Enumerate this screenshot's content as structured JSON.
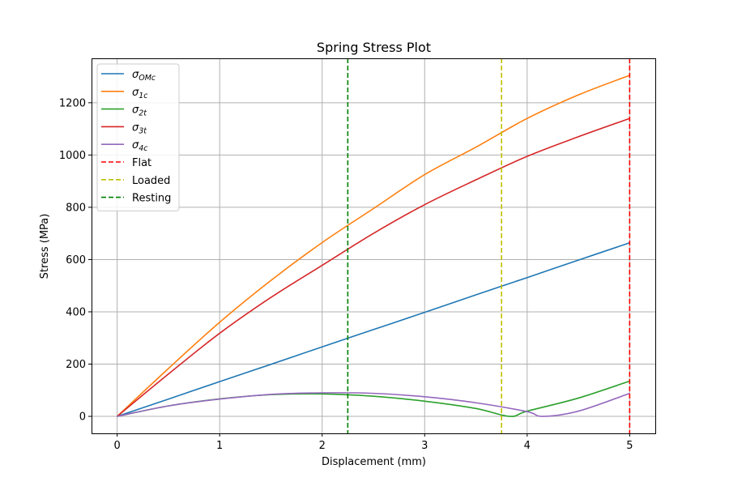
{
  "chart_data": {
    "type": "line",
    "title": "Spring Stress Plot",
    "xlabel": "Displacement (mm)",
    "ylabel": "Stress (MPa)",
    "xlim": [
      -0.25,
      5.25
    ],
    "ylim": [
      -65,
      1370
    ],
    "xticks": [
      0,
      1,
      2,
      3,
      4,
      5
    ],
    "yticks": [
      0,
      200,
      400,
      600,
      800,
      1000,
      1200
    ],
    "grid": true,
    "legend_position": "top-left",
    "series": [
      {
        "name": "σOMc",
        "label_main": "σ",
        "label_sub": "OMc",
        "color": "#1f77b4",
        "x": [
          0,
          0.5,
          1,
          1.5,
          2,
          2.5,
          3,
          3.5,
          4,
          4.5,
          5
        ],
        "y": [
          0,
          66,
          133,
          199,
          266,
          332,
          398,
          465,
          531,
          598,
          664
        ]
      },
      {
        "name": "σ1c",
        "label_main": "σ",
        "label_sub": "1c",
        "color": "#ff7f0e",
        "x": [
          0,
          0.5,
          1,
          1.5,
          2,
          2.5,
          3,
          3.5,
          4,
          4.5,
          5
        ],
        "y": [
          0,
          183,
          360,
          520,
          665,
          795,
          925,
          1030,
          1140,
          1230,
          1305
        ]
      },
      {
        "name": "σ2t",
        "label_main": "σ",
        "label_sub": "2t",
        "color": "#2ca02c",
        "x": [
          0,
          0.5,
          1,
          1.5,
          2,
          2.5,
          3,
          3.5,
          3.83,
          4,
          4.5,
          5
        ],
        "y": [
          0,
          40,
          67,
          83,
          86,
          77,
          58,
          30,
          0,
          20,
          70,
          135
        ]
      },
      {
        "name": "σ3t",
        "label_main": "σ",
        "label_sub": "3t",
        "color": "#d62728",
        "x": [
          0,
          0.5,
          1,
          1.5,
          2,
          2.5,
          3,
          3.5,
          4,
          4.5,
          5
        ],
        "y": [
          0,
          162,
          318,
          455,
          578,
          700,
          810,
          905,
          995,
          1070,
          1140
        ]
      },
      {
        "name": "σ4c",
        "label_main": "σ",
        "label_sub": "4c",
        "color": "#9467bd",
        "x": [
          0,
          0.5,
          1,
          1.5,
          2,
          2.5,
          3,
          3.5,
          4,
          4.15,
          4.5,
          5
        ],
        "y": [
          0,
          40,
          66,
          84,
          90,
          88,
          75,
          52,
          18,
          0,
          20,
          88
        ]
      }
    ],
    "reference_lines": [
      {
        "name": "Flat",
        "x": 5,
        "color": "#ff0000",
        "style": "dashed"
      },
      {
        "name": "Loaded",
        "x": 3.75,
        "color": "#bfbf00",
        "style": "dashed"
      },
      {
        "name": "Resting",
        "x": 2.25,
        "color": "#008000",
        "style": "dashed"
      }
    ]
  }
}
